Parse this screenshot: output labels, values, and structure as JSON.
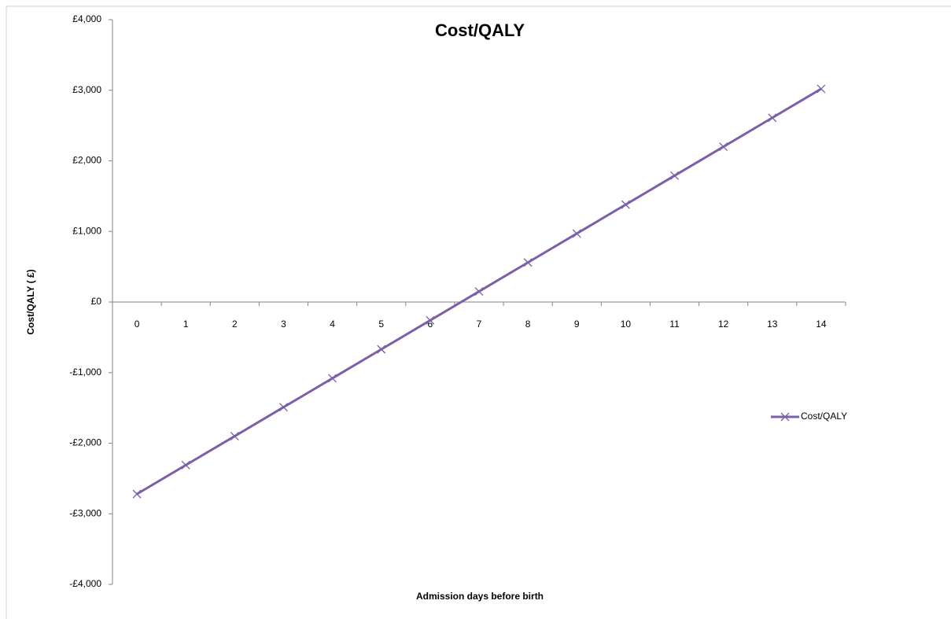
{
  "chart_data": {
    "type": "line",
    "title": "Cost/QALY",
    "x_label": "Admission days before birth",
    "y_label": "Cost/QALY ( £)",
    "categories": [
      "0",
      "1",
      "2",
      "3",
      "4",
      "5",
      "6",
      "7",
      "8",
      "9",
      "10",
      "11",
      "12",
      "13",
      "14"
    ],
    "series": [
      {
        "name": "Cost/QALY",
        "color": "#7b5fa8",
        "values": [
          -2720,
          -2310,
          -1900,
          -1490,
          -1080,
          -670,
          -260,
          150,
          560,
          970,
          1380,
          1790,
          2200,
          2610,
          3020
        ]
      }
    ],
    "ylim": [
      -4000,
      4000
    ],
    "yticks": [
      {
        "value": -4000,
        "label": "-£4,000"
      },
      {
        "value": -3000,
        "label": "-£3,000"
      },
      {
        "value": -2000,
        "label": "-£2,000"
      },
      {
        "value": -1000,
        "label": "-£1,000"
      },
      {
        "value": 0,
        "label": "£0"
      },
      {
        "value": 1000,
        "label": "£1,000"
      },
      {
        "value": 2000,
        "label": "£2,000"
      },
      {
        "value": 3000,
        "label": "£3,000"
      },
      {
        "value": 4000,
        "label": "£4,000"
      }
    ],
    "grid": false,
    "legend": "right"
  }
}
